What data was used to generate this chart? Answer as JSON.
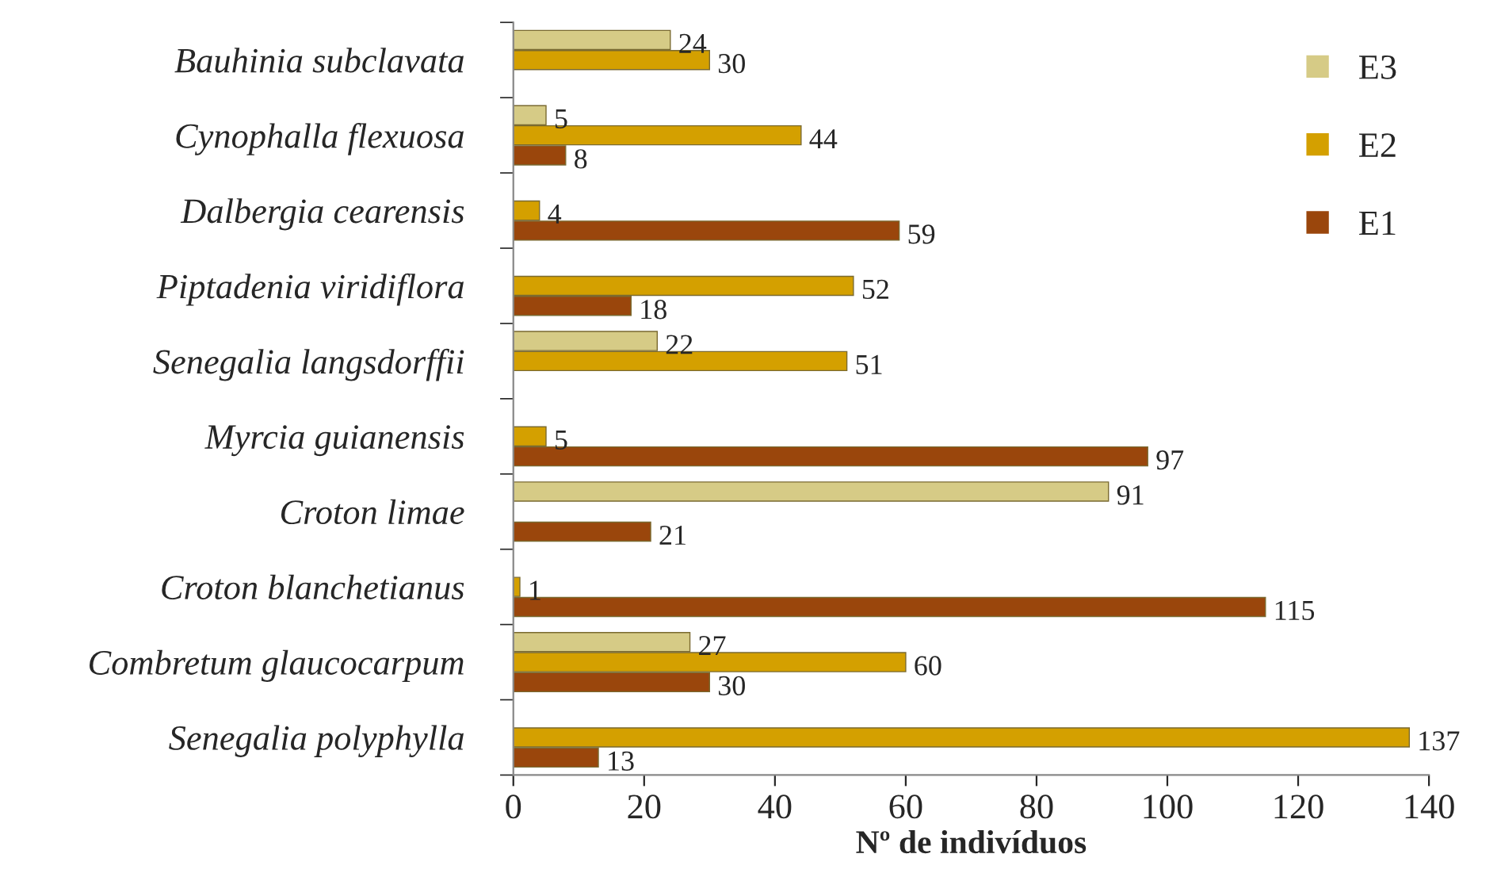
{
  "chart_data": {
    "type": "bar",
    "orientation": "horizontal",
    "xlabel": "Nº de indivíduos",
    "categories": [
      "Bauhinia subclavata",
      "Cynophalla flexuosa",
      "Dalbergia cearensis",
      "Piptadenia viridiflora",
      "Senegalia langsdorffii",
      "Myrcia guianensis",
      "Croton limae",
      "Croton blanchetianus",
      "Combretum glaucocarpum",
      "Senegalia polyphylla"
    ],
    "series": [
      {
        "name": "E3",
        "color": "#d6cb86",
        "values": [
          24,
          5,
          null,
          null,
          22,
          null,
          91,
          null,
          27,
          null
        ]
      },
      {
        "name": "E2",
        "color": "#d4a000",
        "values": [
          30,
          44,
          4,
          52,
          51,
          5,
          null,
          1,
          60,
          137
        ]
      },
      {
        "name": "E1",
        "color": "#9a460c",
        "values": [
          null,
          8,
          59,
          18,
          null,
          97,
          21,
          115,
          30,
          13
        ]
      }
    ],
    "xlim": [
      0,
      140
    ],
    "xticks": [
      0,
      20,
      40,
      60,
      80,
      100,
      120,
      140
    ],
    "data_labels": true,
    "legend": "top right",
    "grid": false
  }
}
